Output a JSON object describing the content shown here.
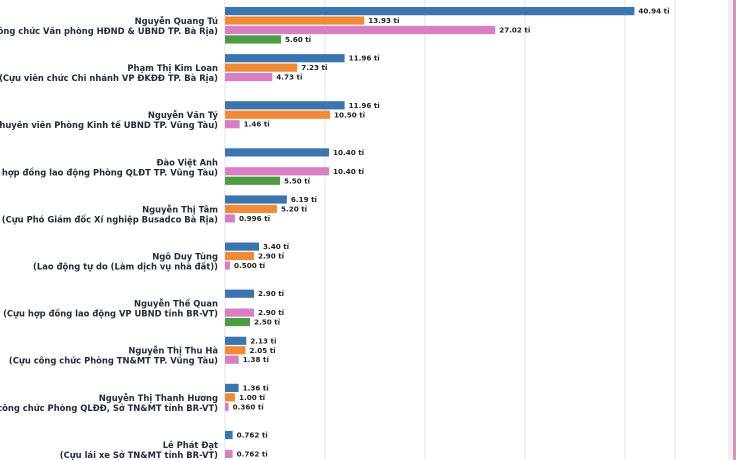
{
  "chart_data": {
    "type": "bar",
    "orientation": "horizontal",
    "title": "",
    "xlabel": "",
    "ylabel": "",
    "unit": "tỉ",
    "grid": true,
    "xlim": [
      0,
      45
    ],
    "colors": {
      "blue": "#3c74ae",
      "orange": "#ef8b38",
      "pink": "#d77fc1",
      "green": "#4e9a45",
      "edge_accent": "#b4528c"
    },
    "groups": [
      {
        "name": "Nguyễn Quang Tú",
        "role": "(Cựu công chức Văn phòng HĐND & UBND TP. Bà Rịa)",
        "bars": [
          {
            "color": "blue",
            "value": 40.94,
            "label": "40.94 tỉ"
          },
          {
            "color": "orange",
            "value": 13.93,
            "label": "13.93 tỉ"
          },
          {
            "color": "pink",
            "value": 27.02,
            "label": "27.02 tỉ"
          },
          {
            "color": "green",
            "value": 5.6,
            "label": "5.60 tỉ"
          }
        ]
      },
      {
        "name": "Phạm Thị Kim Loan",
        "role": "(Cựu viên chức Chi nhánh VP ĐKĐĐ TP. Bà Rịa)",
        "bars": [
          {
            "color": "blue",
            "value": 11.96,
            "label": "11.96 tỉ"
          },
          {
            "color": "orange",
            "value": 7.23,
            "label": "7.23 tỉ"
          },
          {
            "color": "pink",
            "value": 4.73,
            "label": "4.73 tỉ"
          }
        ]
      },
      {
        "name": "Nguyễn Văn Tý",
        "role": "(Cựu chuyên viên Phòng Kinh tế UBND TP. Vũng Tàu)",
        "bars": [
          {
            "color": "blue",
            "value": 11.96,
            "label": "11.96 tỉ"
          },
          {
            "color": "orange",
            "value": 10.5,
            "label": "10.50 tỉ"
          },
          {
            "color": "pink",
            "value": 1.46,
            "label": "1.46 tỉ"
          }
        ]
      },
      {
        "name": "Đào Việt Anh",
        "role": "(Cựu hợp đồng lao động Phòng QLĐT TP. Vũng Tàu)",
        "bars": [
          {
            "color": "blue",
            "value": 10.4,
            "label": "10.40 tỉ"
          },
          {
            "color": "pink",
            "value": 10.4,
            "label": "10.40 tỉ"
          },
          {
            "color": "green",
            "value": 5.5,
            "label": "5.50 tỉ"
          }
        ]
      },
      {
        "name": "Nguyễn Thị Tâm",
        "role": "(Cựu Phó Giám đốc Xí nghiệp Busadco Bà Rịa)",
        "bars": [
          {
            "color": "blue",
            "value": 6.19,
            "label": "6.19 tỉ"
          },
          {
            "color": "orange",
            "value": 5.2,
            "label": "5.20 tỉ"
          },
          {
            "color": "pink",
            "value": 0.996,
            "label": "0.996 tỉ"
          }
        ]
      },
      {
        "name": "Ngô Duy Tùng",
        "role": "(Lao động tự do (Làm dịch vụ nhà đất))",
        "bars": [
          {
            "color": "blue",
            "value": 3.4,
            "label": "3.40 tỉ"
          },
          {
            "color": "orange",
            "value": 2.9,
            "label": "2.90 tỉ"
          },
          {
            "color": "pink",
            "value": 0.5,
            "label": "0.500 tỉ"
          }
        ]
      },
      {
        "name": "Nguyễn Thế Quan",
        "role": "(Cựu hợp đồng lao động VP UBND tỉnh BR-VT)",
        "bars": [
          {
            "color": "blue",
            "value": 2.9,
            "label": "2.90 tỉ"
          },
          {
            "color": "pink",
            "value": 2.9,
            "label": "2.90 tỉ"
          },
          {
            "color": "green",
            "value": 2.5,
            "label": "2.50 tỉ"
          }
        ]
      },
      {
        "name": "Nguyễn Thị Thu Hà",
        "role": "(Cựu công chức Phòng TN&MT TP. Vũng Tàu)",
        "bars": [
          {
            "color": "blue",
            "value": 2.13,
            "label": "2.13 tỉ"
          },
          {
            "color": "orange",
            "value": 2.05,
            "label": "2.05 tỉ"
          },
          {
            "color": "pink",
            "value": 1.38,
            "label": "1.38 tỉ"
          }
        ]
      },
      {
        "name": "Nguyễn Thị Thanh Hương",
        "role": "(Cựu công chức Phòng QLĐĐ, Sở TN&MT tỉnh BR-VT)",
        "bars": [
          {
            "color": "blue",
            "value": 1.36,
            "label": "1.36 tỉ"
          },
          {
            "color": "orange",
            "value": 1.0,
            "label": "1.00 tỉ"
          },
          {
            "color": "pink",
            "value": 0.36,
            "label": "0.360 tỉ"
          }
        ]
      },
      {
        "name": "Lê Phát Đạt",
        "role": "(Cựu lái xe Sở TN&MT tỉnh BR-VT)",
        "bars": [
          {
            "color": "blue",
            "value": 0.762,
            "label": "0.762 tỉ"
          },
          {
            "color": "pink",
            "value": 0.762,
            "label": "0.762 tỉ"
          }
        ]
      }
    ]
  }
}
